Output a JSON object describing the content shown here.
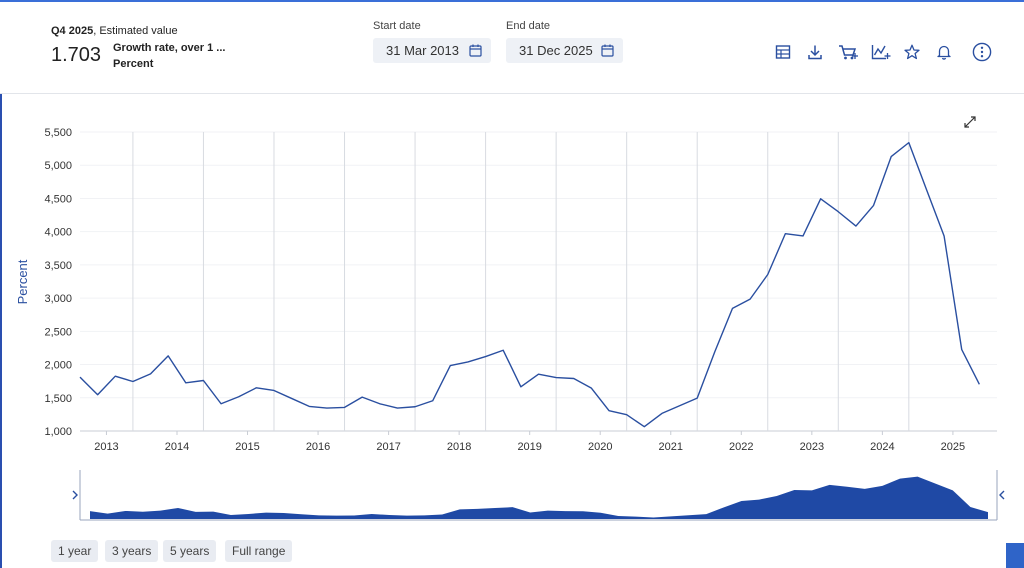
{
  "summary": {
    "period": "Q4 2025",
    "period_suffix": ", Estimated value",
    "value": "1.703",
    "description": "Growth rate, over 1 ...",
    "unit": "Percent"
  },
  "dates": {
    "start_label": "Start date",
    "start_value": "31 Mar 2013",
    "end_label": "End date",
    "end_value": "31 Dec 2025"
  },
  "toolbar": [
    "table-icon",
    "download-icon",
    "cart-icon",
    "chart-type-icon",
    "favorite-star-icon",
    "notification-bell-icon",
    "more-options-icon"
  ],
  "range_buttons": [
    "1 year",
    "3 years",
    "5 years",
    "Full range"
  ],
  "colors": {
    "line": "#2a4fa0",
    "navigator_fill": "#1f49a5",
    "accent": "#2f64c8"
  },
  "chart_data": {
    "type": "line",
    "ylabel": "Percent",
    "ylim": [
      1000,
      5500
    ],
    "yticks": [
      "1,000",
      "1,500",
      "2,000",
      "2,500",
      "3,000",
      "3,500",
      "4,000",
      "4,500",
      "5,000",
      "5,500"
    ],
    "xticks": [
      "2013",
      "2014",
      "2015",
      "2016",
      "2017",
      "2018",
      "2019",
      "2020",
      "2021",
      "2022",
      "2023",
      "2024",
      "2025"
    ],
    "xlim": [
      2013.0,
      2026.0
    ],
    "grid": "vertical at year boundaries",
    "series": [
      {
        "x": [
          2013.0,
          2013.25,
          2013.5,
          2013.75,
          2014.0,
          2014.25,
          2014.5,
          2014.75,
          2015.0,
          2015.25,
          2015.5,
          2015.75,
          2016.0,
          2016.25,
          2016.5,
          2016.75,
          2017.0,
          2017.25,
          2017.5,
          2017.75,
          2018.0,
          2018.25,
          2018.5,
          2018.75,
          2019.0,
          2019.25,
          2019.5,
          2019.75,
          2020.0,
          2020.25,
          2020.5,
          2020.75,
          2021.0,
          2021.25,
          2021.5,
          2021.75,
          2022.0,
          2022.25,
          2022.5,
          2022.75,
          2023.0,
          2023.25,
          2023.5,
          2023.75,
          2024.0,
          2024.25,
          2024.5,
          2024.75,
          2025.0,
          2025.25,
          2025.5,
          2025.75
        ],
        "values": [
          1810,
          1545,
          1825,
          1745,
          1860,
          2130,
          1725,
          1760,
          1410,
          1515,
          1650,
          1610,
          1490,
          1370,
          1345,
          1355,
          1510,
          1410,
          1345,
          1365,
          1455,
          1985,
          2040,
          2120,
          2215,
          1665,
          1855,
          1805,
          1790,
          1645,
          1305,
          1245,
          1065,
          1265,
          1380,
          1495,
          2195,
          2845,
          2985,
          3355,
          3970,
          3935,
          4495,
          4300,
          4085,
          4395,
          5130,
          5340,
          4635,
          3935,
          2225,
          1703
        ]
      }
    ]
  }
}
